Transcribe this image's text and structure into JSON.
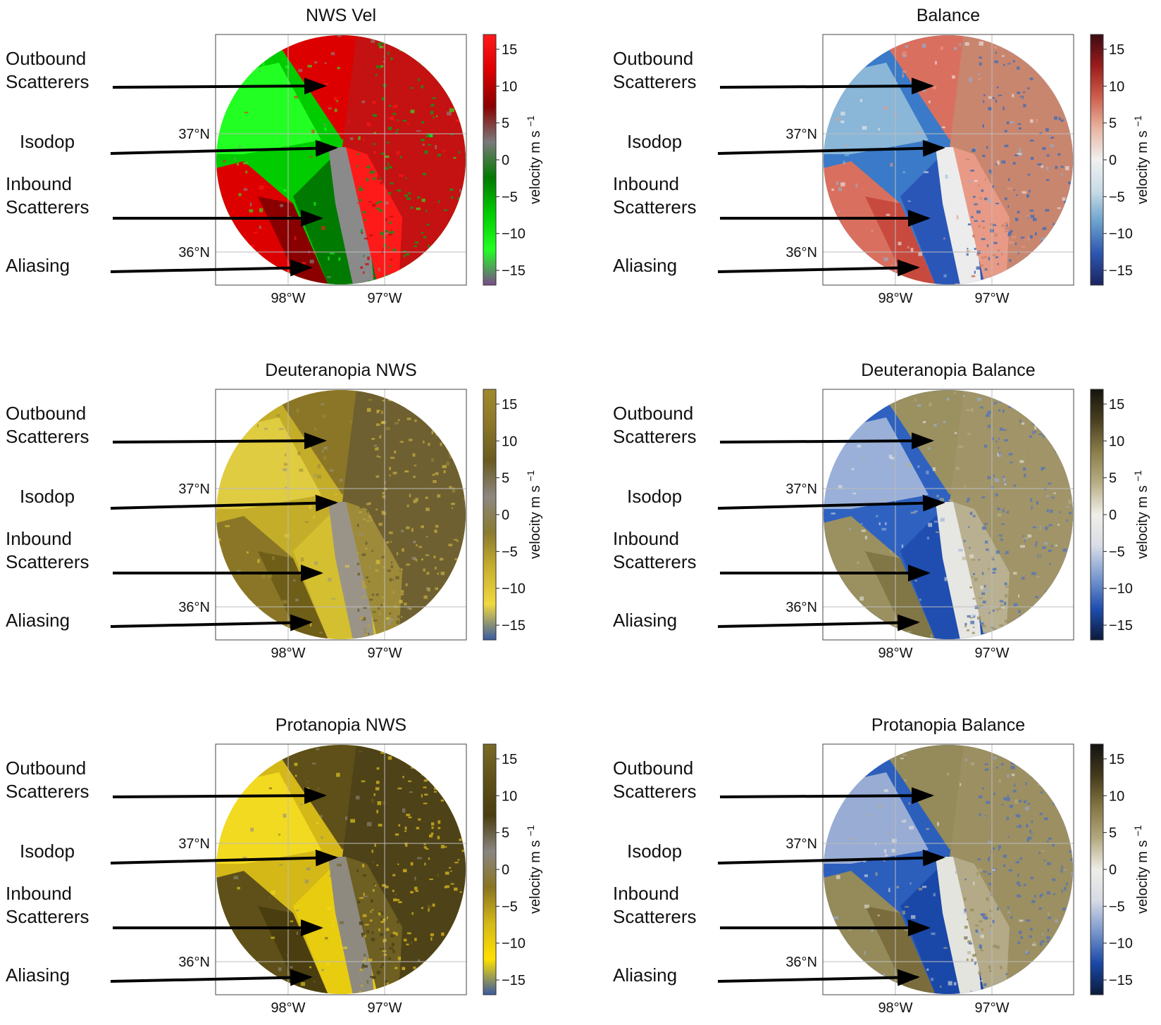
{
  "chart_data": {
    "type": "radar-velocity-maps",
    "annotations": [
      {
        "id": "outbound",
        "lines": [
          "Outbound",
          "Scatterers"
        ]
      },
      {
        "id": "isodop",
        "lines": [
          "Isodop"
        ]
      },
      {
        "id": "inbound",
        "lines": [
          "Inbound",
          "Scatterers"
        ]
      },
      {
        "id": "aliasing",
        "lines": [
          "Aliasing"
        ]
      }
    ],
    "lat_ticks": [
      "37°N",
      "36°N"
    ],
    "lon_ticks": [
      "98°W",
      "97°W"
    ],
    "colorbar": {
      "label": "velocity m s",
      "label_sub": "−1",
      "ticks": [
        15,
        10,
        5,
        0,
        -5,
        -10,
        -15
      ],
      "tick_labels": [
        "15",
        "10",
        "5",
        "0",
        "−5",
        "−10",
        "−15"
      ],
      "vmin": -17,
      "vmax": 17
    },
    "panels": [
      {
        "title": "NWS Vel",
        "positive": [
          "#8a0000",
          "#dd0000",
          "#ff1a1a"
        ],
        "negative": [
          "#007a00",
          "#00cc00",
          "#22ff22"
        ],
        "neutral": "#8a8a8a",
        "bar": [
          "#7a4a8a",
          "#22ff22",
          "#00cc00",
          "#007a00",
          "#7a7a7a",
          "#8a0000",
          "#dd0000",
          "#ff1a1a"
        ],
        "noise": [
          "#1b8f1b",
          "#c41111"
        ]
      },
      {
        "title": "Balance",
        "positive": [
          "#c84a3e",
          "#d9705f",
          "#e89a86"
        ],
        "negative": [
          "#2a56b8",
          "#3a7ac8",
          "#8ab6d8"
        ],
        "neutral": "#ececec",
        "bar": [
          "#1b2460",
          "#2d55b0",
          "#6aa0cc",
          "#c8dbe6",
          "#f0f0f0",
          "#e8b5a2",
          "#cf5e4c",
          "#9a1c1c",
          "#3d0a12"
        ],
        "noise": [
          "#4a6fb0",
          "#c9866f"
        ]
      },
      {
        "title": "Deuteranopia NWS",
        "positive": [
          "#6e5e18",
          "#8a7626",
          "#9d8b3a"
        ],
        "negative": [
          "#d4bf30",
          "#c4ad28",
          "#e0cc40"
        ],
        "neutral": "#9a9488",
        "bar": [
          "#3a5aa0",
          "#f0d840",
          "#c8b030",
          "#8a7a30",
          "#8c8880",
          "#6a5a20",
          "#8a7628",
          "#a08a30"
        ],
        "noise": [
          "#b8a040",
          "#6e6030"
        ]
      },
      {
        "title": "Deuteranopia Balance",
        "positive": [
          "#807646",
          "#9a9060",
          "#b8b090"
        ],
        "negative": [
          "#1f4eb0",
          "#2f62c0",
          "#9ab0d8"
        ],
        "neutral": "#e6e6e2",
        "bar": [
          "#0c1a3a",
          "#1f4eb0",
          "#7a9ad0",
          "#d8dce6",
          "#f0efe8",
          "#b8ae86",
          "#8a7e4a",
          "#4a4020",
          "#15140e"
        ],
        "noise": [
          "#5a78b4",
          "#a09468"
        ]
      },
      {
        "title": "Protanopia NWS",
        "positive": [
          "#4a3e10",
          "#5e5018",
          "#6e5f22"
        ],
        "negative": [
          "#e8cc10",
          "#d4b818",
          "#f2da20"
        ],
        "neutral": "#8e8a80",
        "bar": [
          "#3a5aa0",
          "#ffe000",
          "#d4b818",
          "#8a7420",
          "#8a8680",
          "#4a3e10",
          "#5e5018",
          "#7a6a28"
        ],
        "noise": [
          "#c9aa20",
          "#4e4218"
        ]
      },
      {
        "title": "Protanopia Balance",
        "positive": [
          "#7a6c3c",
          "#948a5a",
          "#b4aa88"
        ],
        "negative": [
          "#1a48a8",
          "#2c5ebc",
          "#98acd4"
        ],
        "neutral": "#e4e4de",
        "bar": [
          "#0c1a3a",
          "#1a48a8",
          "#7896cc",
          "#d6dae4",
          "#eeede6",
          "#b2a880",
          "#847644",
          "#443a1c",
          "#121210"
        ],
        "noise": [
          "#5876b2",
          "#9c8f62"
        ]
      }
    ]
  }
}
